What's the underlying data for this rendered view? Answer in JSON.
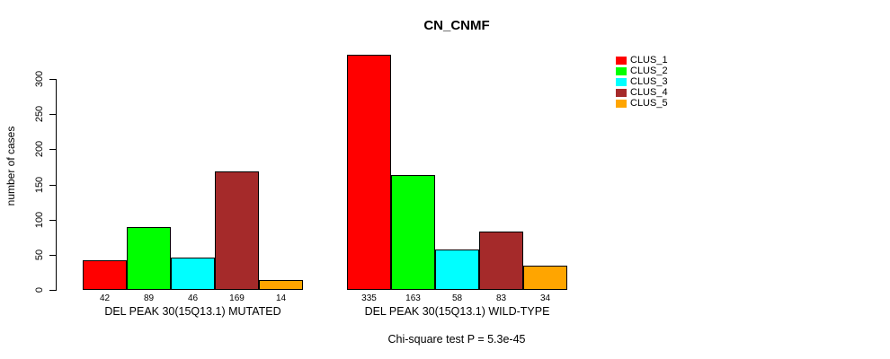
{
  "chart_data": {
    "type": "bar",
    "title": "CN_CNMF",
    "ylabel": "number of cases",
    "xlabel": "",
    "ylim": [
      0,
      300
    ],
    "yticks": [
      0,
      50,
      100,
      150,
      200,
      250,
      300
    ],
    "grid": false,
    "legend_position": "top-right",
    "categories": [
      "DEL PEAK 30(15Q13.1) MUTATED",
      "DEL PEAK 30(15Q13.1) WILD-TYPE"
    ],
    "series": [
      {
        "name": "CLUS_1",
        "color": "#ff0000",
        "values": [
          42,
          335
        ]
      },
      {
        "name": "CLUS_2",
        "color": "#00ff00",
        "values": [
          89,
          163
        ]
      },
      {
        "name": "CLUS_3",
        "color": "#00ffff",
        "values": [
          46,
          58
        ]
      },
      {
        "name": "CLUS_4",
        "color": "#a52a2a",
        "values": [
          169,
          83
        ]
      },
      {
        "name": "CLUS_5",
        "color": "#ffa500",
        "values": [
          14,
          34
        ]
      }
    ],
    "bar_value_labels": [
      [
        "42",
        "89",
        "46",
        "169",
        "14"
      ],
      [
        "335",
        "163",
        "58",
        "83",
        "34"
      ]
    ],
    "annotation": "Chi-square test P = 5.3e-45"
  }
}
